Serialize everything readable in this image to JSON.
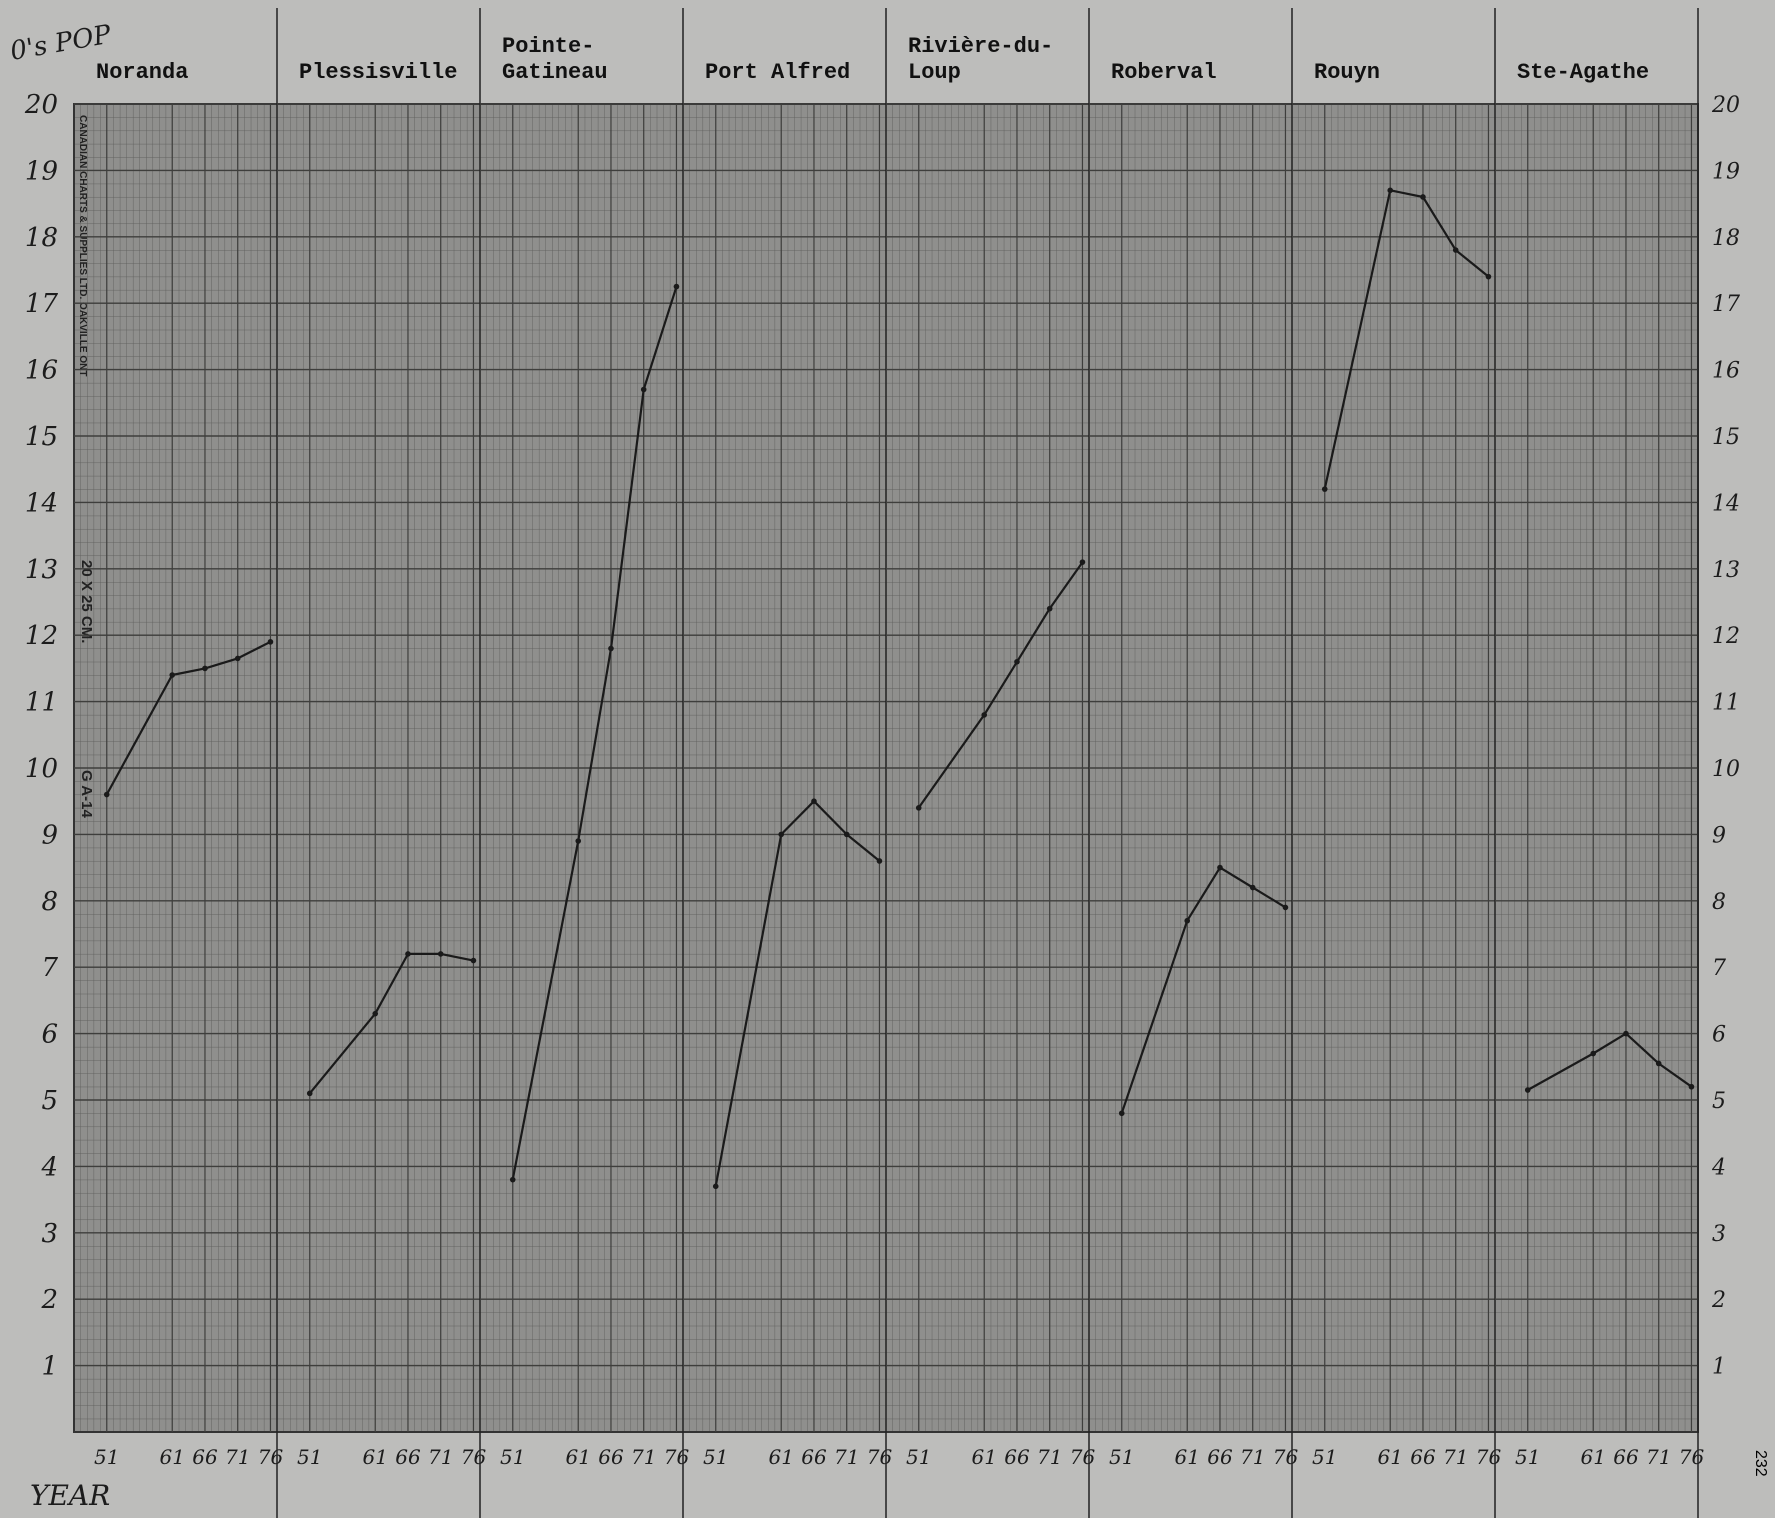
{
  "chart_data": [
    {
      "type": "line",
      "title": "Noranda",
      "x": [
        51,
        61,
        66,
        71,
        76
      ],
      "xticks": [
        51,
        61,
        66,
        71,
        76
      ],
      "xlim": [
        46,
        77
      ],
      "ylim": [
        0,
        20
      ],
      "yticks": [
        1,
        2,
        3,
        4,
        5,
        6,
        7,
        8,
        9,
        10,
        11,
        12,
        13,
        14,
        15,
        16,
        17,
        18,
        19,
        20
      ],
      "color": "#1a1a1a",
      "values": [
        9.6,
        11.4,
        11.5,
        11.65,
        11.9
      ]
    },
    {
      "type": "line",
      "title": "Plessisville",
      "x": [
        51,
        61,
        66,
        71,
        76
      ],
      "xticks": [
        51,
        61,
        66,
        71,
        76
      ],
      "xlim": [
        46,
        77
      ],
      "ylim": [
        0,
        20
      ],
      "yticks": [
        1,
        2,
        3,
        4,
        5,
        6,
        7,
        8,
        9,
        10,
        11,
        12,
        13,
        14,
        15,
        16,
        17,
        18,
        19,
        20
      ],
      "color": "#1a1a1a",
      "values": [
        5.1,
        6.3,
        7.2,
        7.2,
        7.1
      ]
    },
    {
      "type": "line",
      "title": "Pointe-\nGatineau",
      "x": [
        51,
        61,
        66,
        71,
        76
      ],
      "xticks": [
        51,
        61,
        66,
        71,
        76
      ],
      "xlim": [
        46,
        77
      ],
      "ylim": [
        0,
        20
      ],
      "yticks": [
        1,
        2,
        3,
        4,
        5,
        6,
        7,
        8,
        9,
        10,
        11,
        12,
        13,
        14,
        15,
        16,
        17,
        18,
        19,
        20
      ],
      "color": "#1a1a1a",
      "values": [
        3.8,
        8.9,
        11.8,
        15.7,
        17.25
      ]
    },
    {
      "type": "line",
      "title": "Port Alfred",
      "x": [
        51,
        61,
        66,
        71,
        76
      ],
      "xticks": [
        51,
        61,
        66,
        71,
        76
      ],
      "xlim": [
        46,
        77
      ],
      "ylim": [
        0,
        20
      ],
      "yticks": [
        1,
        2,
        3,
        4,
        5,
        6,
        7,
        8,
        9,
        10,
        11,
        12,
        13,
        14,
        15,
        16,
        17,
        18,
        19,
        20
      ],
      "color": "#1a1a1a",
      "values": [
        3.7,
        9.0,
        9.5,
        9.0,
        8.6
      ]
    },
    {
      "type": "line",
      "title": "Rivière-du-\nLoup",
      "x": [
        51,
        61,
        66,
        71,
        76
      ],
      "xticks": [
        51,
        61,
        66,
        71,
        76
      ],
      "xlim": [
        46,
        77
      ],
      "ylim": [
        0,
        20
      ],
      "yticks": [
        1,
        2,
        3,
        4,
        5,
        6,
        7,
        8,
        9,
        10,
        11,
        12,
        13,
        14,
        15,
        16,
        17,
        18,
        19,
        20
      ],
      "color": "#1a1a1a",
      "values": [
        9.4,
        10.8,
        11.6,
        12.4,
        13.1
      ]
    },
    {
      "type": "line",
      "title": "Roberval",
      "x": [
        51,
        61,
        66,
        71,
        76
      ],
      "xticks": [
        51,
        61,
        66,
        71,
        76
      ],
      "xlim": [
        46,
        77
      ],
      "ylim": [
        0,
        20
      ],
      "yticks": [
        1,
        2,
        3,
        4,
        5,
        6,
        7,
        8,
        9,
        10,
        11,
        12,
        13,
        14,
        15,
        16,
        17,
        18,
        19,
        20
      ],
      "color": "#1a1a1a",
      "values": [
        4.8,
        7.7,
        8.5,
        8.2,
        7.9
      ]
    },
    {
      "type": "line",
      "title": "Rouyn",
      "x": [
        51,
        61,
        66,
        71,
        76
      ],
      "xticks": [
        51,
        61,
        66,
        71,
        76
      ],
      "xlim": [
        46,
        77
      ],
      "ylim": [
        0,
        20
      ],
      "yticks": [
        1,
        2,
        3,
        4,
        5,
        6,
        7,
        8,
        9,
        10,
        11,
        12,
        13,
        14,
        15,
        16,
        17,
        18,
        19,
        20
      ],
      "color": "#1a1a1a",
      "values": [
        14.2,
        18.7,
        18.6,
        17.8,
        17.4
      ]
    },
    {
      "type": "line",
      "title": "Ste-Agathe",
      "x": [
        51,
        61,
        66,
        71,
        76
      ],
      "xticks": [
        51,
        61,
        66,
        71,
        76
      ],
      "xlim": [
        46,
        77
      ],
      "ylim": [
        0,
        20
      ],
      "yticks": [
        1,
        2,
        3,
        4,
        5,
        6,
        7,
        8,
        9,
        10,
        11,
        12,
        13,
        14,
        15,
        16,
        17,
        18,
        19,
        20
      ],
      "color": "#1a1a1a",
      "values": [
        5.15,
        5.7,
        6.0,
        5.55,
        5.2
      ]
    }
  ],
  "y_label": "0's POP",
  "x_label": "YEAR",
  "page_number": "232",
  "paper_notes": [
    "CANADIAN CHARTS & SUPPLIES LTD. OAKVILLE ONT",
    "20 X 25 CM.",
    "G A-14"
  ]
}
